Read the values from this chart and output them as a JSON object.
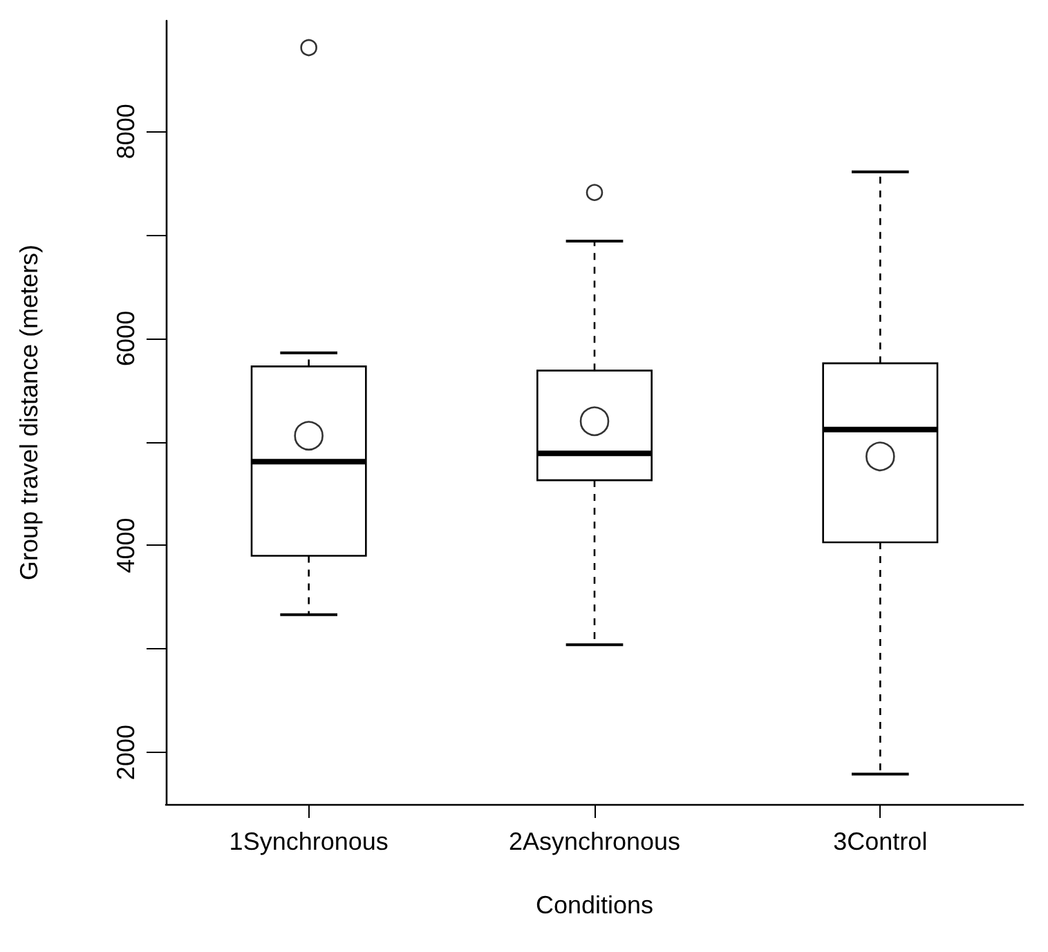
{
  "chart_data": {
    "type": "box",
    "xlabel": "Conditions",
    "ylabel": "Group travel distance (meters)",
    "categories": [
      "1Synchronous",
      "2Asynchronous",
      "3Control"
    ],
    "boxes": [
      {
        "low": 3330,
        "q1": 3900,
        "median": 4810,
        "q3": 5730,
        "high": 5860,
        "mean": 5060,
        "outliers": [
          8810
        ]
      },
      {
        "low": 3040,
        "q1": 4630,
        "median": 4890,
        "q3": 5690,
        "high": 6940,
        "mean": 5200,
        "outliers": [
          7410
        ]
      },
      {
        "low": 1790,
        "q1": 4030,
        "median": 5120,
        "q3": 5760,
        "high": 7610,
        "mean": 4860
      }
    ],
    "ylim": [
      1500,
      9070
    ],
    "yticks": [
      2000,
      {
        "value": 3000,
        "label": null
      },
      4000,
      {
        "value": 5000,
        "label": null
      },
      6000,
      {
        "value": 7000,
        "label": null
      },
      8000
    ]
  }
}
